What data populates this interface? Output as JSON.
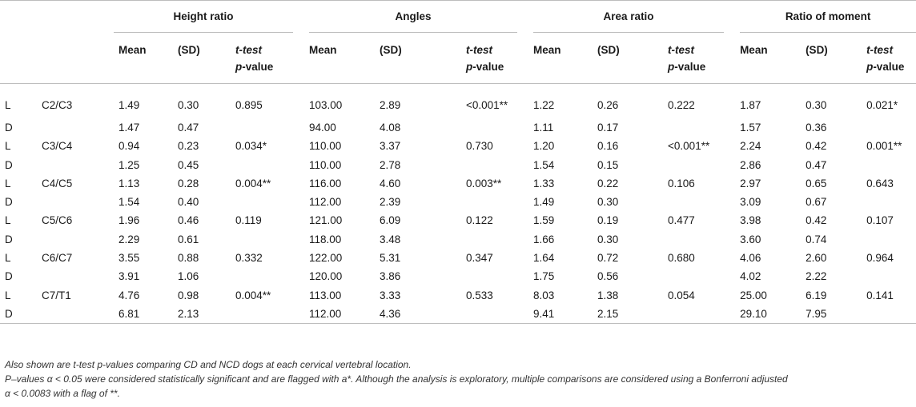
{
  "groups": {
    "height_ratio": "Height ratio",
    "angles": "Angles",
    "area_ratio": "Area ratio",
    "ratio_of_moment": "Ratio of moment"
  },
  "sub": {
    "mean": "Mean",
    "sd": "(SD)",
    "ttest_line1": "t-test",
    "ttest_line2_p": "p",
    "ttest_line2_rest": "-value"
  },
  "rows": [
    {
      "group": "L",
      "loc": "C2/C3",
      "h_mean": "1.49",
      "h_sd": "0.30",
      "h_p": "0.895",
      "a_mean": "103.00",
      "a_sd": "2.89",
      "a_p": "<0.001**",
      "ar_mean": "1.22",
      "ar_sd": "0.26",
      "ar_p": "0.222",
      "m_mean": "1.87",
      "m_sd": "0.30",
      "m_p": "0.021*"
    },
    {
      "group": "D",
      "loc": "",
      "h_mean": "1.47",
      "h_sd": "0.47",
      "h_p": "",
      "a_mean": "94.00",
      "a_sd": "4.08",
      "a_p": "",
      "ar_mean": "1.11",
      "ar_sd": "0.17",
      "ar_p": "",
      "m_mean": "1.57",
      "m_sd": "0.36",
      "m_p": ""
    },
    {
      "group": "L",
      "loc": "C3/C4",
      "h_mean": "0.94",
      "h_sd": "0.23",
      "h_p": "0.034*",
      "a_mean": "110.00",
      "a_sd": "3.37",
      "a_p": "0.730",
      "ar_mean": "1.20",
      "ar_sd": "0.16",
      "ar_p": "<0.001**",
      "m_mean": "2.24",
      "m_sd": "0.42",
      "m_p": "0.001**"
    },
    {
      "group": "D",
      "loc": "",
      "h_mean": "1.25",
      "h_sd": "0.45",
      "h_p": "",
      "a_mean": "110.00",
      "a_sd": "2.78",
      "a_p": "",
      "ar_mean": "1.54",
      "ar_sd": "0.15",
      "ar_p": "",
      "m_mean": "2.86",
      "m_sd": "0.47",
      "m_p": ""
    },
    {
      "group": "L",
      "loc": "C4/C5",
      "h_mean": "1.13",
      "h_sd": "0.28",
      "h_p": "0.004**",
      "a_mean": "116.00",
      "a_sd": "4.60",
      "a_p": "0.003**",
      "ar_mean": "1.33",
      "ar_sd": "0.22",
      "ar_p": "0.106",
      "m_mean": "2.97",
      "m_sd": "0.65",
      "m_p": "0.643"
    },
    {
      "group": "D",
      "loc": "",
      "h_mean": "1.54",
      "h_sd": "0.40",
      "h_p": "",
      "a_mean": "112.00",
      "a_sd": "2.39",
      "a_p": "",
      "ar_mean": "1.49",
      "ar_sd": "0.30",
      "ar_p": "",
      "m_mean": "3.09",
      "m_sd": "0.67",
      "m_p": ""
    },
    {
      "group": "L",
      "loc": "C5/C6",
      "h_mean": "1.96",
      "h_sd": "0.46",
      "h_p": "0.119",
      "a_mean": "121.00",
      "a_sd": "6.09",
      "a_p": "0.122",
      "ar_mean": "1.59",
      "ar_sd": "0.19",
      "ar_p": "0.477",
      "m_mean": "3.98",
      "m_sd": "0.42",
      "m_p": "0.107"
    },
    {
      "group": "D",
      "loc": "",
      "h_mean": "2.29",
      "h_sd": "0.61",
      "h_p": "",
      "a_mean": "118.00",
      "a_sd": "3.48",
      "a_p": "",
      "ar_mean": "1.66",
      "ar_sd": "0.30",
      "ar_p": "",
      "m_mean": "3.60",
      "m_sd": "0.74",
      "m_p": ""
    },
    {
      "group": "L",
      "loc": "C6/C7",
      "h_mean": "3.55",
      "h_sd": "0.88",
      "h_p": "0.332",
      "a_mean": "122.00",
      "a_sd": "5.31",
      "a_p": "0.347",
      "ar_mean": "1.64",
      "ar_sd": "0.72",
      "ar_p": "0.680",
      "m_mean": "4.06",
      "m_sd": "2.60",
      "m_p": "0.964"
    },
    {
      "group": "D",
      "loc": "",
      "h_mean": "3.91",
      "h_sd": "1.06",
      "h_p": "",
      "a_mean": "120.00",
      "a_sd": "3.86",
      "a_p": "",
      "ar_mean": "1.75",
      "ar_sd": "0.56",
      "ar_p": "",
      "m_mean": "4.02",
      "m_sd": "2.22",
      "m_p": ""
    },
    {
      "group": "L",
      "loc": "C7/T1",
      "h_mean": "4.76",
      "h_sd": "0.98",
      "h_p": "0.004**",
      "a_mean": "113.00",
      "a_sd": "3.33",
      "a_p": "0.533",
      "ar_mean": "8.03",
      "ar_sd": "1.38",
      "ar_p": "0.054",
      "m_mean": "25.00",
      "m_sd": "6.19",
      "m_p": "0.141"
    },
    {
      "group": "D",
      "loc": "",
      "h_mean": "6.81",
      "h_sd": "2.13",
      "h_p": "",
      "a_mean": "112.00",
      "a_sd": "4.36",
      "a_p": "",
      "ar_mean": "9.41",
      "ar_sd": "2.15",
      "ar_p": "",
      "m_mean": "29.10",
      "m_sd": "7.95",
      "m_p": ""
    }
  ],
  "notes": {
    "line1": "Also shown are t-test p-values comparing CD and NCD dogs at each cervical vertebral location.",
    "line2a": "P–values α < 0.05 were considered statistically significant and are flagged with a*. Although the analysis is exploratory, multiple comparisons are considered using a Bonferroni adjusted",
    "line2b": "α < 0.0083 with a flag of **."
  }
}
